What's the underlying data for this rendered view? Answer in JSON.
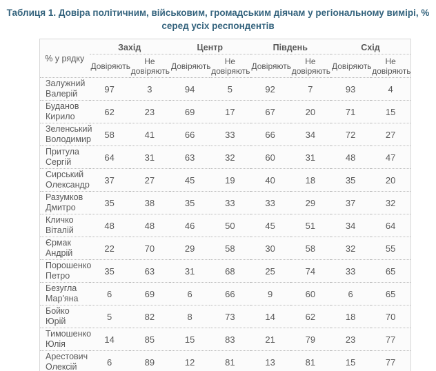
{
  "colors": {
    "title_text": "#35647e",
    "table_text": "#595959",
    "row_border_dotted": "#b9b9b9",
    "table_border_outer": "#d8d8d8",
    "table_background": "#fbfbfb"
  },
  "chart_data": {
    "type": "table",
    "title": "Таблиця 1. Довіра політичним, військовим, громадським діячам у регіональному вимірі, % серед усіх респондентів",
    "corner_label": "% у рядку",
    "region_headers": [
      "Захід",
      "Центр",
      "Південь",
      "Схід"
    ],
    "sub_headers": [
      "Довіряють",
      "Не довіряють"
    ],
    "rows": [
      {
        "name": "Залужний Валерій",
        "values": [
          97,
          3,
          94,
          5,
          92,
          7,
          93,
          4
        ]
      },
      {
        "name": "Буданов Кирило",
        "values": [
          62,
          23,
          69,
          17,
          67,
          20,
          71,
          15
        ]
      },
      {
        "name": "Зеленський Володимир",
        "values": [
          58,
          41,
          66,
          33,
          66,
          34,
          72,
          27
        ]
      },
      {
        "name": "Притула Сергій",
        "values": [
          64,
          31,
          63,
          32,
          60,
          31,
          48,
          47
        ]
      },
      {
        "name": "Сирський Олександр",
        "values": [
          37,
          27,
          45,
          19,
          40,
          18,
          35,
          20
        ]
      },
      {
        "name": "Разумков Дмитро",
        "values": [
          35,
          38,
          35,
          33,
          33,
          29,
          37,
          32
        ]
      },
      {
        "name": "Кличко Віталій",
        "values": [
          48,
          48,
          46,
          50,
          45,
          51,
          34,
          64
        ]
      },
      {
        "name": "Єрмак Андрій",
        "values": [
          22,
          70,
          29,
          58,
          30,
          58,
          32,
          55
        ]
      },
      {
        "name": "Порошенко Петро",
        "values": [
          35,
          63,
          31,
          68,
          25,
          74,
          33,
          65
        ]
      },
      {
        "name": "Безугла Мар'яна",
        "values": [
          6,
          69,
          6,
          66,
          9,
          60,
          6,
          65
        ]
      },
      {
        "name": "Бойко Юрій",
        "values": [
          5,
          82,
          8,
          73,
          14,
          62,
          18,
          70
        ]
      },
      {
        "name": "Тимошенко Юлія",
        "values": [
          14,
          85,
          15,
          83,
          21,
          79,
          23,
          77
        ]
      },
      {
        "name": "Арестович Олексій",
        "values": [
          6,
          89,
          12,
          81,
          13,
          81,
          15,
          77
        ]
      }
    ]
  }
}
